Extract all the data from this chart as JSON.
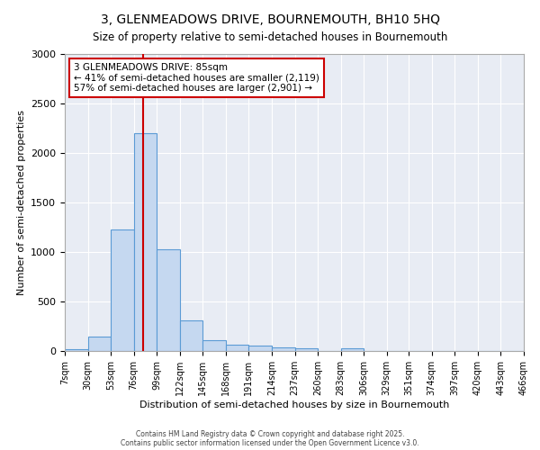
{
  "title": "3, GLENMEADOWS DRIVE, BOURNEMOUTH, BH10 5HQ",
  "subtitle": "Size of property relative to semi-detached houses in Bournemouth",
  "xlabel": "Distribution of semi-detached houses by size in Bournemouth",
  "ylabel": "Number of semi-detached properties",
  "bin_edges": [
    7,
    30,
    53,
    76,
    99,
    122,
    145,
    168,
    191,
    214,
    237,
    260,
    283,
    306,
    329,
    351,
    374,
    397,
    420,
    443,
    466
  ],
  "bar_heights": [
    20,
    150,
    1230,
    2200,
    1030,
    305,
    110,
    60,
    55,
    40,
    30,
    0,
    30,
    0,
    0,
    0,
    0,
    0,
    0,
    0
  ],
  "bar_color": "#c5d8f0",
  "bar_edge_color": "#5b9bd5",
  "property_size": 85,
  "red_line_color": "#cc0000",
  "annotation_line1": "3 GLENMEADOWS DRIVE: 85sqm",
  "annotation_line2": "← 41% of semi-detached houses are smaller (2,119)",
  "annotation_line3": "57% of semi-detached houses are larger (2,901) →",
  "annotation_box_color": "#ffffff",
  "annotation_box_edge_color": "#cc0000",
  "ylim": [
    0,
    3000
  ],
  "background_color": "#ffffff",
  "plot_bg_color": "#e8ecf4",
  "footer_line1": "Contains HM Land Registry data © Crown copyright and database right 2025.",
  "footer_line2": "Contains public sector information licensed under the Open Government Licence v3.0.",
  "tick_labels": [
    "7sqm",
    "30sqm",
    "53sqm",
    "76sqm",
    "99sqm",
    "122sqm",
    "145sqm",
    "168sqm",
    "191sqm",
    "214sqm",
    "237sqm",
    "260sqm",
    "283sqm",
    "306sqm",
    "329sqm",
    "351sqm",
    "374sqm",
    "397sqm",
    "420sqm",
    "443sqm",
    "466sqm"
  ]
}
